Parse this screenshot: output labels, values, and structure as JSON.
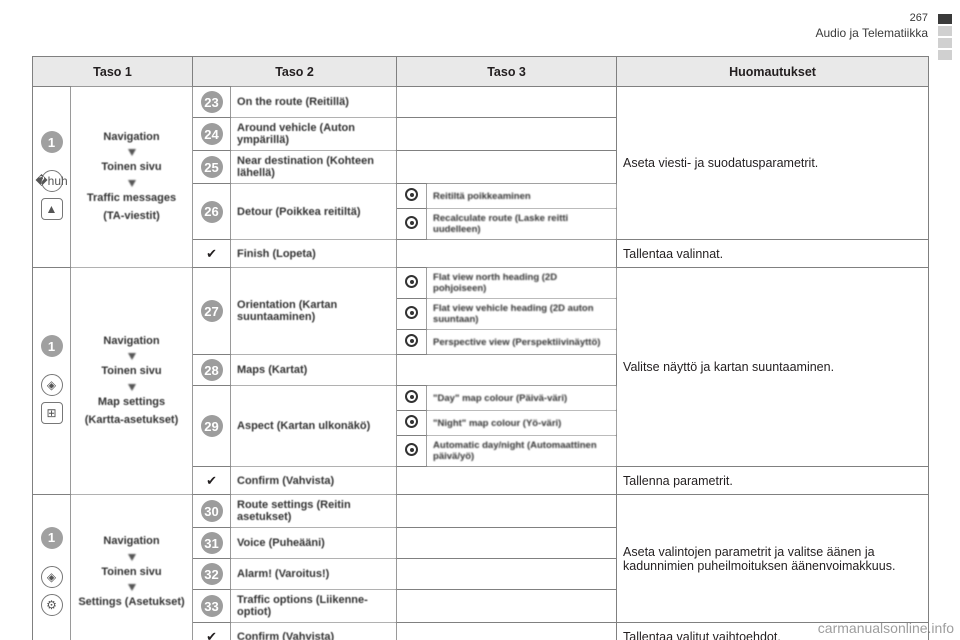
{
  "page_number": "267",
  "section_title": "Audio ja Telematiikka",
  "watermark": "carmanualsonline.info",
  "headers": {
    "c1": "Taso 1",
    "c2": "Taso 2",
    "c3": "Taso 3",
    "c4": "Huomautukset"
  },
  "colors": {
    "header_bg": "#e9e9e9",
    "border": "#808080",
    "circle_bg": "#9d9d9d",
    "circle_fg": "#ffffff",
    "text": "#231f20"
  },
  "blocks": [
    {
      "id": "traffic",
      "icons": [
        "◈",
        "⚠"
      ],
      "label_lines": [
        "Navigation",
        "",
        "Toinen sivu",
        "",
        "Traffic messages",
        "(TA-viestit)"
      ],
      "rows": [
        {
          "num": "23",
          "opt": "On the route (Reitillä)",
          "sub": [],
          "note_group": 0
        },
        {
          "num": "24",
          "opt": "Around vehicle (Auton ympärillä)",
          "sub": [],
          "note_group": 0
        },
        {
          "num": "25",
          "opt": "Near destination (Kohteen lähellä)",
          "sub": [],
          "note_group": 0
        },
        {
          "num": "26",
          "opt": "Detour (Poikkea reitiltä)",
          "sub": [
            "Reitiltä poikkeaminen",
            "Recalculate route (Laske reitti uudelleen)"
          ],
          "note_group": 0
        }
      ],
      "confirm": "Finish (Lopeta)",
      "notes": [
        "Aseta viesti- ja suodatusparametrit.",
        "Tallentaa valinnat."
      ]
    },
    {
      "id": "map",
      "icons": [
        "◈",
        "⊞"
      ],
      "label_lines": [
        "Navigation",
        "",
        "Toinen sivu",
        "",
        "Map settings",
        "(Kartta-asetukset)"
      ],
      "rows": [
        {
          "num": "27",
          "opt": "Orientation (Kartan suuntaaminen)",
          "sub": [
            "Flat view north heading (2D pohjoiseen)",
            "Flat view vehicle heading (2D auton suuntaan)",
            "Perspective view (Perspektiivinäyttö)"
          ],
          "note_group": 0
        },
        {
          "num": "28",
          "opt": "Maps (Kartat)",
          "sub": [],
          "note_group": 0
        },
        {
          "num": "29",
          "opt": "Aspect (Kartan ulkonäkö)",
          "sub": [
            "\"Day\" map colour (Päivä-väri)",
            "\"Night\" map colour (Yö-väri)",
            "Automatic day/night (Automaattinen päivä/yö)"
          ],
          "note_group": 0
        }
      ],
      "confirm": "Confirm (Vahvista)",
      "notes": [
        "Valitse näyttö ja kartan suuntaaminen.",
        "Tallenna parametrit."
      ]
    },
    {
      "id": "settings",
      "icons": [
        "◈",
        "⚙"
      ],
      "label_lines": [
        "Navigation",
        "",
        "Toinen sivu",
        "",
        "Settings (Asetukset)"
      ],
      "rows": [
        {
          "num": "30",
          "opt": "Route settings (Reitin asetukset)",
          "sub": [],
          "note_group": 0
        },
        {
          "num": "31",
          "opt": "Voice (Puheääni)",
          "sub": [],
          "note_group": 0
        },
        {
          "num": "32",
          "opt": "Alarm! (Varoitus!)",
          "sub": [],
          "note_group": 0
        },
        {
          "num": "33",
          "opt": "Traffic options (Liikenne-optiot)",
          "sub": [],
          "note_group": 0
        }
      ],
      "confirm": "Confirm (Vahvista)",
      "notes": [
        "Aseta valintojen parametrit ja valitse äänen ja kadunnimien puheilmoituksen äänenvoimakkuus.",
        "Tallentaa valitut vaihtoehdot."
      ]
    }
  ]
}
